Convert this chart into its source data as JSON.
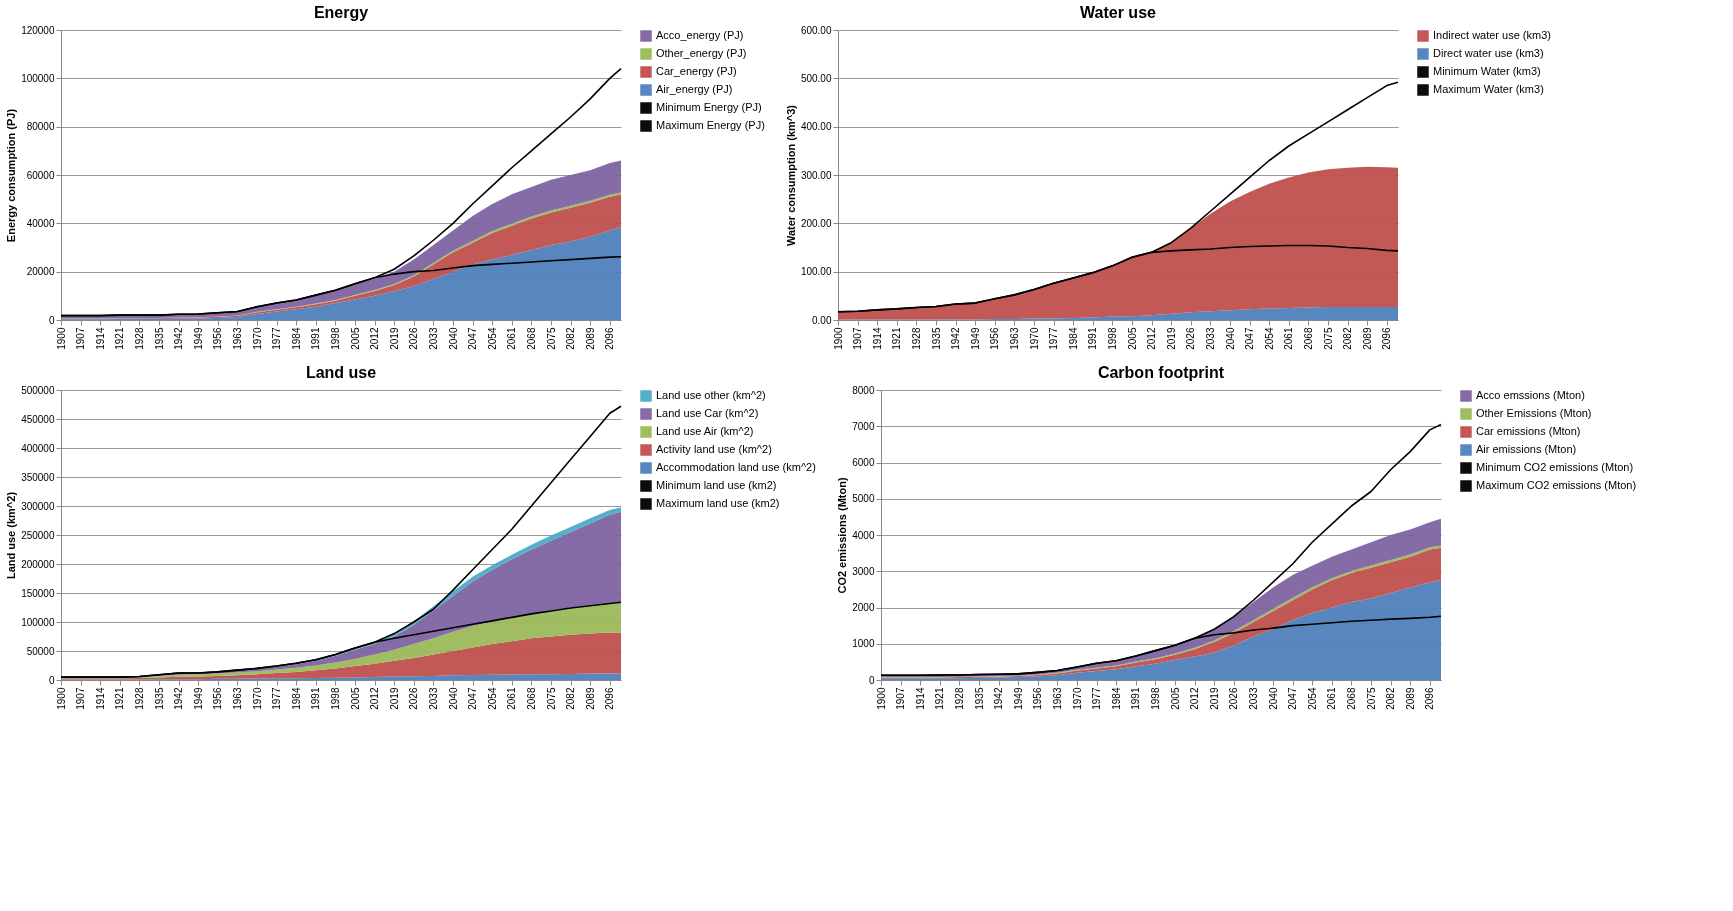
{
  "chart_data": [
    {
      "type": "area",
      "title": "Energy",
      "ylabel": "Energy consumption (PJ)",
      "stacked": true,
      "grid": "y",
      "legend": "right",
      "x": [
        1900,
        1907,
        1914,
        1921,
        1928,
        1935,
        1942,
        1949,
        1956,
        1963,
        1970,
        1977,
        1984,
        1991,
        1998,
        2005,
        2012,
        2019,
        2026,
        2033,
        2040,
        2047,
        2054,
        2061,
        2068,
        2075,
        2082,
        2089,
        2096,
        2100
      ],
      "xlim": [
        1900,
        2100
      ],
      "xticks": [
        1900,
        1907,
        1914,
        1921,
        1928,
        1935,
        1942,
        1949,
        1956,
        1963,
        1970,
        1977,
        1984,
        1991,
        1998,
        2005,
        2012,
        2019,
        2026,
        2033,
        2040,
        2047,
        2054,
        2061,
        2068,
        2075,
        2082,
        2089,
        2096
      ],
      "ylim": [
        0,
        120000
      ],
      "yticks": [
        0,
        20000,
        40000,
        60000,
        80000,
        100000,
        120000
      ],
      "series": [
        {
          "name": "Air_energy (PJ)",
          "color": "#4f81bd",
          "values": [
            300,
            300,
            300,
            400,
            400,
            400,
            500,
            600,
            800,
            1200,
            2500,
            3500,
            4500,
            5500,
            7000,
            8500,
            10000,
            12000,
            14000,
            17000,
            20000,
            23000,
            25000,
            27000,
            29000,
            31000,
            32500,
            34500,
            37000,
            38500
          ]
        },
        {
          "name": "Car_energy (PJ)",
          "color": "#c0504d",
          "values": [
            200,
            200,
            200,
            200,
            300,
            300,
            400,
            400,
            500,
            600,
            700,
            700,
            800,
            1000,
            1000,
            1500,
            2000,
            2500,
            4000,
            6000,
            8000,
            9000,
            11000,
            12000,
            13000,
            13500,
            14000,
            14000,
            14000,
            13500
          ]
        },
        {
          "name": "Other_energy (PJ)",
          "color": "#9bbb59",
          "values": [
            100,
            100,
            100,
            100,
            100,
            100,
            100,
            100,
            100,
            100,
            200,
            200,
            200,
            300,
            300,
            300,
            400,
            400,
            500,
            600,
            700,
            700,
            800,
            800,
            800,
            800,
            800,
            800,
            800,
            800
          ]
        },
        {
          "name": "Acco_energy (PJ)",
          "color": "#8064a2",
          "values": [
            900,
            900,
            900,
            1000,
            1000,
            1000,
            1200,
            1200,
            1600,
            1600,
            2100,
            2600,
            2500,
            3200,
            3700,
            4700,
            4600,
            5100,
            6500,
            7400,
            8300,
            10300,
            11200,
            12200,
            12200,
            12700,
            12700,
            12700,
            13200,
            13200
          ]
        },
        {
          "name": "Minimum Energy (PJ)",
          "type": "line",
          "color": "#000000",
          "values": [
            1800,
            1800,
            1800,
            2000,
            2000,
            2000,
            2400,
            2500,
            3000,
            3500,
            5500,
            7000,
            8300,
            10300,
            12300,
            15000,
            17500,
            19000,
            20000,
            20500,
            21500,
            22500,
            23000,
            23500,
            24000,
            24500,
            25000,
            25500,
            26000,
            26200
          ]
        },
        {
          "name": "Maximum Energy (PJ)",
          "type": "line",
          "color": "#000000",
          "values": [
            1800,
            1800,
            1800,
            2000,
            2000,
            2000,
            2400,
            2500,
            3000,
            3500,
            5500,
            7000,
            8300,
            10300,
            12300,
            15000,
            17500,
            21000,
            26500,
            33000,
            40000,
            48000,
            55500,
            63000,
            70000,
            77000,
            84000,
            91500,
            100000,
            104000
          ]
        }
      ]
    },
    {
      "type": "area",
      "title": "Water use",
      "ylabel": "Water consumption (km^3)",
      "stacked": true,
      "grid": "y",
      "legend": "right",
      "x": [
        1900,
        1907,
        1914,
        1921,
        1928,
        1935,
        1942,
        1949,
        1956,
        1963,
        1970,
        1977,
        1984,
        1991,
        1998,
        2005,
        2012,
        2019,
        2026,
        2033,
        2040,
        2047,
        2054,
        2061,
        2068,
        2075,
        2082,
        2089,
        2096,
        2100
      ],
      "xlim": [
        1900,
        2100
      ],
      "xticks": [
        1900,
        1907,
        1914,
        1921,
        1928,
        1935,
        1942,
        1949,
        1956,
        1963,
        1970,
        1977,
        1984,
        1991,
        1998,
        2005,
        2012,
        2019,
        2026,
        2033,
        2040,
        2047,
        2054,
        2061,
        2068,
        2075,
        2082,
        2089,
        2096
      ],
      "ylim": [
        0,
        600
      ],
      "yticks": [
        {
          "value": 0,
          "label": "0.00"
        },
        {
          "value": 100,
          "label": "100.00"
        },
        {
          "value": 200,
          "label": "200.00"
        },
        {
          "value": 300,
          "label": "300.00"
        },
        {
          "value": 400,
          "label": "400.00"
        },
        {
          "value": 500,
          "label": "500.00"
        },
        {
          "value": 600,
          "label": "600.00"
        }
      ],
      "series": [
        {
          "name": "Direct water use (km3)",
          "color": "#4f81bd",
          "values": [
            1,
            1,
            1,
            1,
            1,
            1,
            1,
            1,
            2,
            2,
            3,
            3,
            4,
            5,
            7,
            8,
            10,
            13,
            16,
            18,
            20,
            22,
            24,
            25,
            26,
            27,
            27,
            27,
            27,
            27
          ]
        },
        {
          "name": "Indirect water use (km3)",
          "color": "#c0504d",
          "values": [
            16,
            17,
            20,
            22,
            25,
            27,
            32,
            36,
            42,
            50,
            60,
            73,
            83,
            93,
            105,
            122,
            130,
            147,
            174,
            202,
            225,
            243,
            258,
            270,
            279,
            285,
            288,
            290,
            289,
            288
          ]
        },
        {
          "name": "Minimum Water (km3)",
          "type": "line",
          "color": "#000000",
          "values": [
            17,
            18,
            21,
            23,
            26,
            28,
            33,
            35,
            44,
            52,
            63,
            76,
            87,
            98,
            112,
            130,
            140,
            143,
            145,
            147,
            150,
            152,
            153,
            154,
            154,
            153,
            150,
            148,
            144,
            143
          ]
        },
        {
          "name": "Maximum Water (km3)",
          "type": "line",
          "color": "#000000",
          "values": [
            17,
            18,
            21,
            23,
            26,
            28,
            33,
            35,
            44,
            52,
            63,
            76,
            87,
            98,
            112,
            130,
            140,
            160,
            190,
            225,
            260,
            295,
            330,
            360,
            385,
            410,
            435,
            460,
            485,
            492
          ]
        }
      ]
    },
    {
      "type": "area",
      "title": "Land use",
      "ylabel": "Land use (km^2)",
      "stacked": true,
      "grid": "y",
      "legend": "right",
      "x": [
        1900,
        1907,
        1914,
        1921,
        1928,
        1935,
        1942,
        1949,
        1956,
        1963,
        1970,
        1977,
        1984,
        1991,
        1998,
        2005,
        2012,
        2019,
        2026,
        2033,
        2040,
        2047,
        2054,
        2061,
        2068,
        2075,
        2082,
        2089,
        2096,
        2100
      ],
      "xlim": [
        1900,
        2100
      ],
      "xticks": [
        1900,
        1907,
        1914,
        1921,
        1928,
        1935,
        1942,
        1949,
        1956,
        1963,
        1970,
        1977,
        1984,
        1991,
        1998,
        2005,
        2012,
        2019,
        2026,
        2033,
        2040,
        2047,
        2054,
        2061,
        2068,
        2075,
        2082,
        2089,
        2096
      ],
      "ylim": [
        0,
        500000
      ],
      "yticks": [
        0,
        50000,
        100000,
        150000,
        200000,
        250000,
        300000,
        350000,
        400000,
        450000,
        500000
      ],
      "series": [
        {
          "name": "Accommodation land use (km^2)",
          "color": "#4f81bd",
          "values": [
            1000,
            1000,
            1000,
            1000,
            1000,
            1500,
            1500,
            1500,
            2000,
            2000,
            2500,
            3000,
            3000,
            3500,
            4000,
            4500,
            5000,
            6000,
            6500,
            7000,
            8000,
            8500,
            9000,
            9500,
            10000,
            10000,
            10500,
            11000,
            11000,
            11000
          ]
        },
        {
          "name": "Activity land use (km^2)",
          "color": "#c0504d",
          "values": [
            2000,
            2000,
            2000,
            2000,
            2500,
            3000,
            4000,
            4500,
            5000,
            6000,
            7500,
            9000,
            11000,
            13500,
            16000,
            19500,
            23000,
            27000,
            31500,
            37000,
            42000,
            47500,
            53000,
            57500,
            62000,
            65000,
            67500,
            69000,
            71000,
            71000
          ]
        },
        {
          "name": "Land use Air (km^2)",
          "color": "#9bbb59",
          "values": [
            1000,
            1000,
            1000,
            1000,
            1500,
            2500,
            3500,
            4000,
            4000,
            5000,
            5000,
            6000,
            7000,
            8000,
            10000,
            12000,
            16000,
            19000,
            24000,
            28000,
            33000,
            37000,
            39000,
            41000,
            42000,
            45000,
            47000,
            49000,
            50000,
            51000
          ]
        },
        {
          "name": "Land use Car (km^2)",
          "color": "#8064a2",
          "values": [
            500,
            500,
            500,
            500,
            500,
            1000,
            2000,
            1500,
            2000,
            3000,
            4000,
            5000,
            6000,
            8000,
            12000,
            16000,
            18000,
            23000,
            33000,
            48000,
            62000,
            77000,
            89000,
            100000,
            111000,
            120000,
            130000,
            141000,
            153000,
            157000
          ]
        },
        {
          "name": "Land use other (km^2)",
          "color": "#4bacc6",
          "values": [
            500,
            500,
            500,
            500,
            500,
            1000,
            1000,
            500,
            1000,
            1000,
            1000,
            1000,
            2000,
            2000,
            2000,
            3000,
            4000,
            5000,
            6000,
            7000,
            8000,
            8000,
            8000,
            8000,
            8000,
            9000,
            9000,
            9000,
            8000,
            8000
          ]
        },
        {
          "name": "Minimum land use (km2)",
          "type": "line",
          "color": "#000000",
          "values": [
            5000,
            5000,
            5000,
            5000,
            6000,
            9000,
            12000,
            12000,
            14000,
            17000,
            20000,
            24000,
            29000,
            35000,
            44000,
            55000,
            65000,
            72000,
            78000,
            84000,
            90000,
            96000,
            102000,
            108000,
            114000,
            119000,
            124000,
            128000,
            132000,
            134000
          ]
        },
        {
          "name": "Maximum land use (km2)",
          "type": "line",
          "color": "#000000",
          "values": [
            5000,
            5000,
            5000,
            5000,
            6000,
            9000,
            12000,
            12000,
            14000,
            17000,
            20000,
            24000,
            29000,
            35000,
            44000,
            55000,
            65000,
            80000,
            100000,
            122000,
            155000,
            190000,
            225000,
            260000,
            300000,
            340000,
            380000,
            420000,
            460000,
            472000
          ]
        }
      ]
    },
    {
      "type": "area",
      "title": "Carbon footprint",
      "ylabel": "CO2 emissions (Mton)",
      "stacked": true,
      "grid": "y",
      "legend": "right",
      "x": [
        1900,
        1907,
        1914,
        1921,
        1928,
        1935,
        1942,
        1949,
        1956,
        1963,
        1970,
        1977,
        1984,
        1991,
        1998,
        2005,
        2012,
        2019,
        2026,
        2033,
        2040,
        2047,
        2054,
        2061,
        2068,
        2075,
        2082,
        2089,
        2096,
        2100
      ],
      "xlim": [
        1900,
        2100
      ],
      "xticks": [
        1900,
        1907,
        1914,
        1921,
        1928,
        1935,
        1942,
        1949,
        1956,
        1963,
        1970,
        1977,
        1984,
        1991,
        1998,
        2005,
        2012,
        2019,
        2026,
        2033,
        2040,
        2047,
        2054,
        2061,
        2068,
        2075,
        2082,
        2089,
        2096
      ],
      "ylim": [
        0,
        8000
      ],
      "yticks": [
        0,
        1000,
        2000,
        3000,
        4000,
        5000,
        6000,
        7000,
        8000
      ],
      "series": [
        {
          "name": "Air emissions (Mton)",
          "color": "#4f81bd",
          "values": [
            50,
            50,
            50,
            50,
            50,
            60,
            70,
            80,
            100,
            130,
            200,
            250,
            300,
            380,
            450,
            550,
            650,
            750,
            950,
            1200,
            1400,
            1650,
            1850,
            2000,
            2150,
            2250,
            2400,
            2550,
            2700,
            2750
          ]
        },
        {
          "name": "Car emissions (Mton)",
          "color": "#c0504d",
          "values": [
            20,
            20,
            20,
            20,
            30,
            30,
            30,
            30,
            40,
            50,
            60,
            70,
            80,
            100,
            120,
            150,
            200,
            300,
            350,
            400,
            500,
            550,
            650,
            750,
            800,
            850,
            850,
            850,
            900,
            900
          ]
        },
        {
          "name": "Other Emissions (Mton)",
          "color": "#9bbb59",
          "values": [
            10,
            10,
            10,
            10,
            10,
            10,
            10,
            10,
            10,
            20,
            20,
            20,
            20,
            30,
            30,
            30,
            40,
            40,
            50,
            50,
            60,
            60,
            60,
            60,
            60,
            60,
            60,
            60,
            60,
            60
          ]
        },
        {
          "name": "Acco emssions (Mton)",
          "color": "#8064a2",
          "values": [
            40,
            40,
            40,
            50,
            40,
            40,
            40,
            40,
            50,
            50,
            70,
            110,
            120,
            140,
            200,
            220,
            260,
            310,
            400,
            500,
            590,
            640,
            590,
            590,
            590,
            640,
            690,
            690,
            690,
            740
          ]
        },
        {
          "name": "Minimum CO2 emissions (Mton)",
          "type": "line",
          "color": "#000000",
          "values": [
            130,
            130,
            130,
            140,
            140,
            150,
            160,
            170,
            210,
            260,
            360,
            460,
            530,
            660,
            810,
            960,
            1150,
            1250,
            1300,
            1380,
            1430,
            1500,
            1540,
            1580,
            1620,
            1650,
            1680,
            1700,
            1730,
            1760
          ]
        },
        {
          "name": "Maximum CO2 emissions (Mton)",
          "type": "line",
          "color": "#000000",
          "values": [
            130,
            130,
            130,
            140,
            140,
            150,
            160,
            170,
            210,
            260,
            360,
            460,
            530,
            660,
            810,
            960,
            1150,
            1400,
            1750,
            2200,
            2700,
            3200,
            3800,
            4300,
            4800,
            5200,
            5800,
            6300,
            6900,
            7050
          ]
        }
      ]
    }
  ]
}
